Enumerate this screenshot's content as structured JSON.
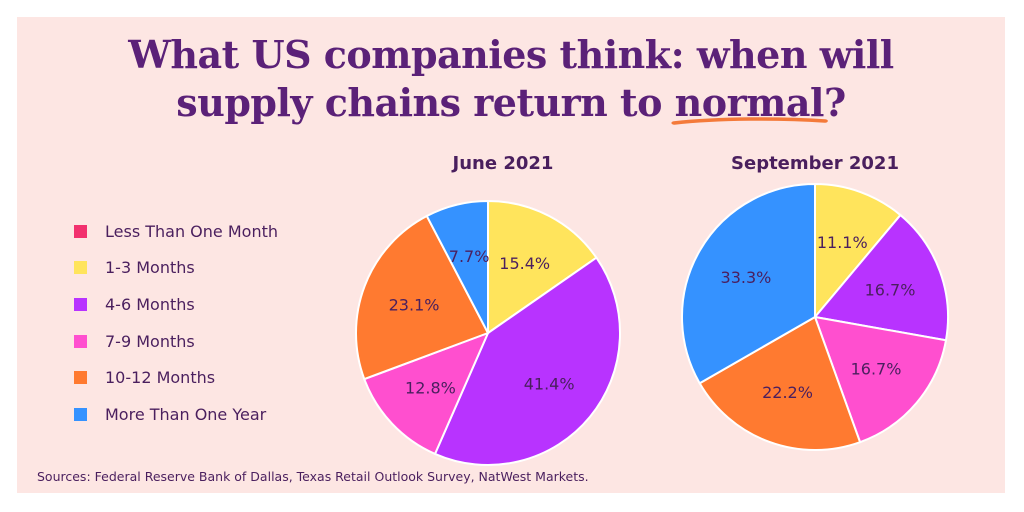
{
  "title": {
    "line1": "What US companies think: when will",
    "line2_before": "supply chains return to ",
    "line2_highlight": "normal",
    "line2_after": "?"
  },
  "source": "Sources: Federal Reserve Bank of Dallas, Texas Retail Outlook Survey, NatWest Markets.",
  "colors": {
    "background": "#fde6e3",
    "title": "#5b2178",
    "underline": "#f47a3a",
    "text": "#4a1f5e"
  },
  "legend": [
    {
      "label": "Less Than One Month",
      "color": "#f2316e"
    },
    {
      "label": "1-3 Months",
      "color": "#ffe45c"
    },
    {
      "label": "4-6 Months",
      "color": "#b833ff"
    },
    {
      "label": "7-9 Months",
      "color": "#ff4fcf"
    },
    {
      "label": "10-12 Months",
      "color": "#ff7a30"
    },
    {
      "label": "More Than One Year",
      "color": "#3592ff"
    }
  ],
  "chart_data": [
    {
      "type": "pie",
      "title": "June 2021",
      "slices": [
        {
          "category": "1-3 Months",
          "value": 15.4,
          "label": "15.4%"
        },
        {
          "category": "4-6 Months",
          "value": 41.4,
          "label": "41.4%"
        },
        {
          "category": "7-9 Months",
          "value": 12.8,
          "label": "12.8%"
        },
        {
          "category": "10-12 Months",
          "value": 23.1,
          "label": "23.1%"
        },
        {
          "category": "More Than One Year",
          "value": 7.7,
          "label": "7.7%"
        }
      ]
    },
    {
      "type": "pie",
      "title": "September 2021",
      "slices": [
        {
          "category": "1-3 Months",
          "value": 11.1,
          "label": "11.1%"
        },
        {
          "category": "4-6 Months",
          "value": 16.7,
          "label": "16.7%"
        },
        {
          "category": "7-9 Months",
          "value": 16.7,
          "label": "16.7%"
        },
        {
          "category": "10-12 Months",
          "value": 22.2,
          "label": "22.2%"
        },
        {
          "category": "More Than One Year",
          "value": 33.3,
          "label": "33.3%"
        }
      ]
    }
  ]
}
